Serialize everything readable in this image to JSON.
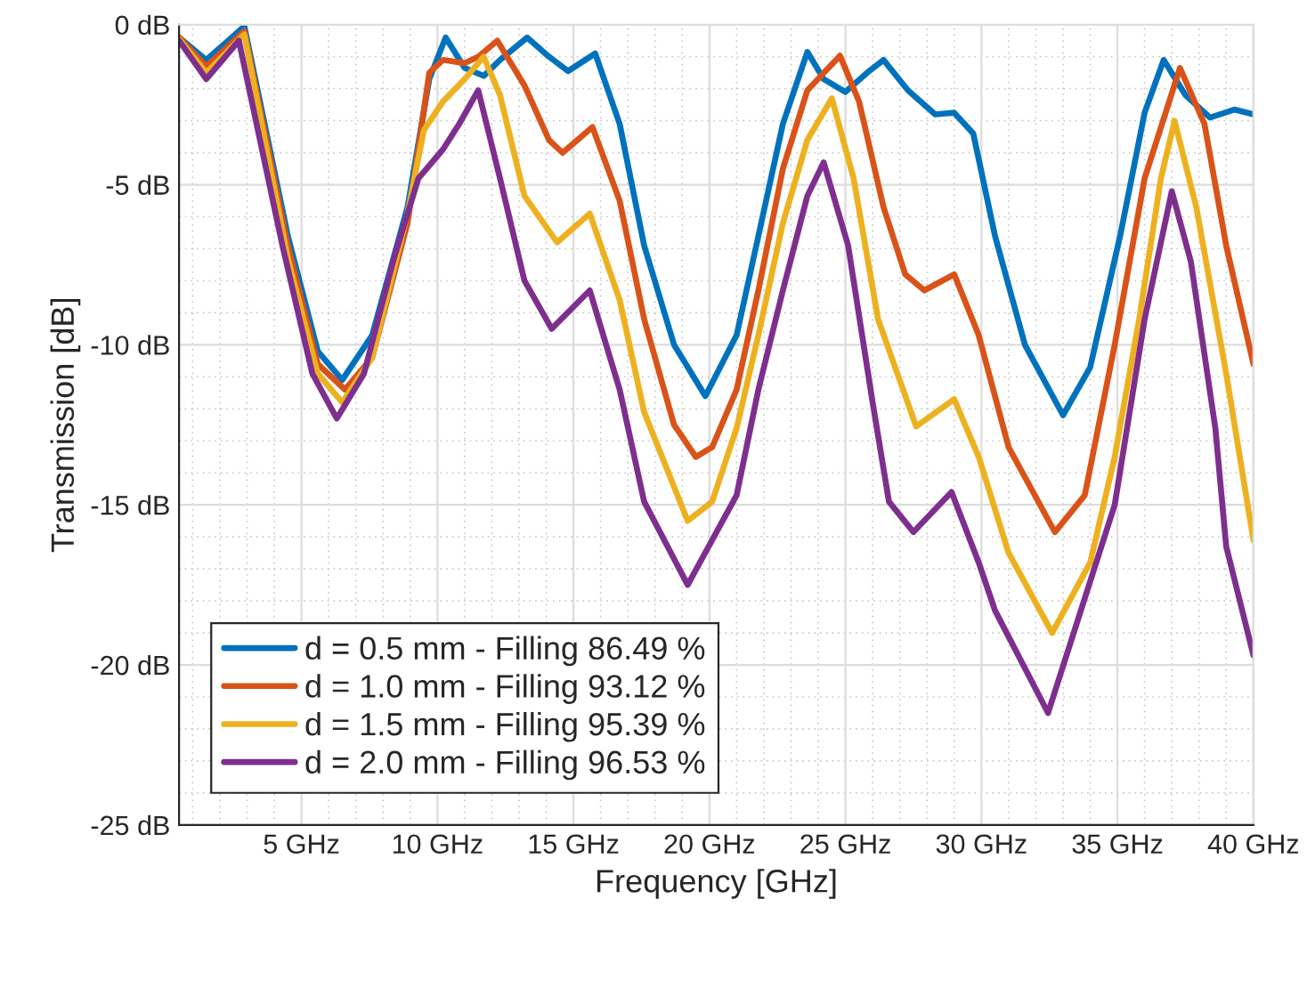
{
  "chart_data": {
    "type": "line",
    "xlabel": "Frequency [GHz]",
    "ylabel": "Transmission [dB]",
    "xlim": [
      0.5,
      40
    ],
    "ylim": [
      -25,
      0
    ],
    "xticks": [
      {
        "value": 5,
        "label": "5 GHz"
      },
      {
        "value": 10,
        "label": "10 GHz"
      },
      {
        "value": 15,
        "label": "15 GHz"
      },
      {
        "value": 20,
        "label": "20 GHz"
      },
      {
        "value": 25,
        "label": "25 GHz"
      },
      {
        "value": 30,
        "label": "30 GHz"
      },
      {
        "value": 35,
        "label": "35 GHz"
      },
      {
        "value": 40,
        "label": "40 GHz"
      }
    ],
    "yticks": [
      {
        "value": 0,
        "label": "0 dB"
      },
      {
        "value": -5,
        "label": "-5 dB"
      },
      {
        "value": -10,
        "label": "-10 dB"
      },
      {
        "value": -15,
        "label": "-15 dB"
      },
      {
        "value": -20,
        "label": "-20 dB"
      },
      {
        "value": -25,
        "label": "-25 dB"
      }
    ],
    "grid": true,
    "legend": "bottom left",
    "marker": "none",
    "line_style": "solid",
    "series": [
      {
        "name": "d = 0.5 mm - Filling 86.49 %",
        "color": "#0072bd",
        "x": [
          0.5,
          1.5,
          2.9,
          4.5,
          5.6,
          6.5,
          7.6,
          8.9,
          9.7,
          10.3,
          11.0,
          11.7,
          12.3,
          13.3,
          14.1,
          14.8,
          15.8,
          16.7,
          17.6,
          18.7,
          19.85,
          21.0,
          21.8,
          22.7,
          23.6,
          24.2,
          25.0,
          25.8,
          26.4,
          27.3,
          28.3,
          29.0,
          29.7,
          30.5,
          31.6,
          33.0,
          34.0,
          35.1,
          36.0,
          36.7,
          37.5,
          38.4,
          39.3,
          40.0
        ],
        "values": [
          -0.4,
          -1.1,
          -0.05,
          -6.6,
          -10.2,
          -11.1,
          -9.7,
          -5.7,
          -1.7,
          -0.4,
          -1.35,
          -1.6,
          -1.1,
          -0.4,
          -1.0,
          -1.45,
          -0.9,
          -3.1,
          -6.9,
          -10.0,
          -11.6,
          -9.7,
          -6.6,
          -3.1,
          -0.85,
          -1.7,
          -2.1,
          -1.5,
          -1.1,
          -2.05,
          -2.8,
          -2.75,
          -3.4,
          -6.6,
          -10.0,
          -12.2,
          -10.7,
          -6.6,
          -2.75,
          -1.1,
          -2.2,
          -2.9,
          -2.65,
          -2.8
        ]
      },
      {
        "name": "d = 1.0 mm - Filling 93.12 %",
        "color": "#d95319",
        "x": [
          0.5,
          1.5,
          2.9,
          4.5,
          5.6,
          6.6,
          7.6,
          8.9,
          9.7,
          10.2,
          11.0,
          11.5,
          12.2,
          13.2,
          14.1,
          14.6,
          15.7,
          16.7,
          17.6,
          18.7,
          19.5,
          20.1,
          21.0,
          21.8,
          22.7,
          23.6,
          24.8,
          25.5,
          26.4,
          27.2,
          27.9,
          29.0,
          29.9,
          31.0,
          32.7,
          33.8,
          34.9,
          36.0,
          37.3,
          38.2,
          39.0,
          40.0
        ],
        "values": [
          -0.4,
          -1.3,
          -0.2,
          -6.9,
          -10.6,
          -11.4,
          -10.4,
          -6.2,
          -1.5,
          -1.1,
          -1.2,
          -1.0,
          -0.5,
          -1.9,
          -3.6,
          -4.0,
          -3.2,
          -5.5,
          -9.2,
          -12.5,
          -13.5,
          -13.2,
          -11.4,
          -8.3,
          -4.5,
          -2.05,
          -0.97,
          -2.4,
          -5.7,
          -7.8,
          -8.3,
          -7.8,
          -9.7,
          -13.2,
          -15.85,
          -14.7,
          -10.0,
          -4.8,
          -1.35,
          -3.1,
          -6.9,
          -10.6
        ]
      },
      {
        "name": "d = 1.5 mm - Filling 95.39 %",
        "color": "#edb120",
        "x": [
          0.5,
          1.5,
          2.9,
          4.5,
          5.6,
          6.5,
          7.6,
          8.9,
          9.5,
          10.2,
          11.0,
          11.7,
          12.3,
          13.2,
          14.4,
          15.6,
          16.7,
          17.6,
          19.2,
          20.1,
          21.0,
          21.8,
          22.7,
          23.6,
          24.5,
          25.3,
          26.2,
          27.6,
          29.0,
          29.9,
          31.0,
          32.6,
          34.0,
          34.9,
          35.8,
          36.6,
          37.1,
          37.9,
          39.0,
          40.0
        ],
        "values": [
          -0.45,
          -1.5,
          -0.3,
          -7.3,
          -10.9,
          -11.8,
          -10.4,
          -5.9,
          -3.3,
          -2.4,
          -1.7,
          -1.0,
          -2.2,
          -5.35,
          -6.8,
          -5.9,
          -8.6,
          -12.1,
          -15.5,
          -14.9,
          -12.6,
          -9.7,
          -6.2,
          -3.6,
          -2.3,
          -4.8,
          -9.2,
          -12.55,
          -11.7,
          -13.5,
          -16.5,
          -19.0,
          -16.8,
          -13.5,
          -9.2,
          -4.8,
          -3.0,
          -5.7,
          -10.9,
          -16.1
        ]
      },
      {
        "name": "d = 2.0 mm - Filling 96.53 %",
        "color": "#7e2f8e",
        "x": [
          0.5,
          1.5,
          2.7,
          4.3,
          5.4,
          6.3,
          7.3,
          8.4,
          9.3,
          10.2,
          10.8,
          11.5,
          12.3,
          13.2,
          14.2,
          15.6,
          16.7,
          17.6,
          19.2,
          21.0,
          21.8,
          22.7,
          23.6,
          24.2,
          25.1,
          26.0,
          26.6,
          27.5,
          28.9,
          29.9,
          30.5,
          32.45,
          34.9,
          36.0,
          37.0,
          37.7,
          38.6,
          39.0,
          40.0
        ],
        "values": [
          -0.5,
          -1.7,
          -0.5,
          -6.9,
          -10.9,
          -12.3,
          -10.9,
          -7.3,
          -4.8,
          -3.9,
          -3.1,
          -2.05,
          -4.8,
          -8.0,
          -9.5,
          -8.3,
          -11.4,
          -14.9,
          -17.5,
          -14.7,
          -11.4,
          -8.3,
          -5.35,
          -4.3,
          -6.9,
          -11.8,
          -14.9,
          -15.85,
          -14.6,
          -16.8,
          -18.3,
          -21.5,
          -15.0,
          -9.2,
          -5.2,
          -7.4,
          -12.6,
          -16.3,
          -19.7
        ]
      }
    ]
  }
}
